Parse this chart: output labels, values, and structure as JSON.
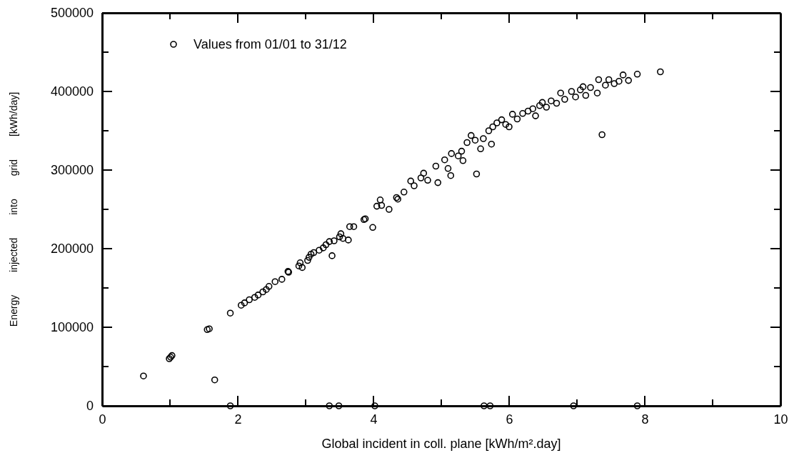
{
  "chart_data": {
    "type": "scatter",
    "xlabel": "Global incident in coll. plane [kWh/m².day]",
    "ylabel": "Energy injected into grid [kWh/day]",
    "xlim": [
      0,
      10
    ],
    "ylim": [
      0,
      500000
    ],
    "xticks": [
      0,
      {
        "value": 1,
        "label": null
      },
      2,
      {
        "value": 3,
        "label": null
      },
      4,
      {
        "value": 5,
        "label": null
      },
      6,
      {
        "value": 7,
        "label": null
      },
      8,
      {
        "value": 9,
        "label": null
      },
      10
    ],
    "yticks": [
      0,
      {
        "value": 50000,
        "label": null
      },
      100000,
      {
        "value": 150000,
        "label": null
      },
      200000,
      {
        "value": 250000,
        "label": null
      },
      300000,
      {
        "value": 350000,
        "label": null
      },
      400000,
      {
        "value": 450000,
        "label": null
      },
      500000
    ],
    "grid": false,
    "legend": "top left",
    "marker": "circle",
    "series": [
      {
        "name": "Values from 01/01 to 31/12",
        "color": "#000000",
        "x": [
          0.61,
          0.99,
          1.01,
          1.03,
          1.55,
          1.58,
          1.66,
          1.89,
          1.89,
          2.05,
          2.1,
          2.17,
          2.25,
          2.3,
          2.37,
          2.42,
          2.46,
          2.55,
          2.65,
          2.74,
          2.75,
          2.9,
          2.92,
          2.95,
          3.03,
          3.05,
          3.08,
          3.12,
          3.2,
          3.26,
          3.3,
          3.35,
          3.39,
          3.42,
          3.5,
          3.52,
          3.55,
          3.63,
          3.65,
          3.71,
          3.86,
          3.88,
          3.99,
          4.05,
          4.1,
          4.12,
          4.23,
          4.34,
          4.36,
          4.45,
          4.55,
          4.6,
          4.7,
          4.74,
          4.8,
          4.92,
          4.95,
          5.05,
          5.1,
          5.14,
          5.15,
          5.25,
          5.3,
          5.32,
          5.38,
          5.44,
          5.5,
          5.52,
          5.58,
          5.62,
          5.7,
          5.74,
          5.76,
          5.82,
          5.89,
          5.95,
          6.0,
          6.05,
          6.12,
          6.2,
          6.28,
          6.35,
          6.39,
          6.45,
          6.49,
          6.55,
          6.62,
          6.7,
          6.76,
          6.82,
          6.92,
          6.98,
          7.05,
          7.09,
          7.13,
          7.2,
          7.3,
          7.32,
          7.37,
          7.42,
          7.47,
          7.55,
          7.62,
          7.68,
          7.76,
          7.89,
          8.23,
          3.35,
          3.49,
          4.02,
          5.63,
          5.72,
          6.95,
          7.89
        ],
        "values": [
          38000,
          60000,
          62000,
          64000,
          97000,
          98000,
          33000,
          118000,
          0,
          128000,
          131000,
          135000,
          138000,
          141000,
          145000,
          148000,
          152000,
          158000,
          161000,
          171000,
          170000,
          178000,
          182000,
          176000,
          185000,
          189000,
          193000,
          195000,
          198000,
          201000,
          205000,
          209000,
          191000,
          210000,
          215000,
          219000,
          213000,
          211000,
          228000,
          228000,
          237000,
          238000,
          227000,
          254000,
          262000,
          255000,
          250000,
          265000,
          263000,
          272000,
          286000,
          280000,
          290000,
          296000,
          287000,
          305000,
          284000,
          313000,
          302000,
          293000,
          321000,
          318000,
          324000,
          312000,
          335000,
          344000,
          338000,
          295000,
          327000,
          340000,
          350000,
          333000,
          355000,
          360000,
          364000,
          358000,
          355000,
          371000,
          365000,
          372000,
          375000,
          378000,
          369000,
          382000,
          386000,
          380000,
          388000,
          385000,
          398000,
          390000,
          400000,
          393000,
          402000,
          406000,
          395000,
          405000,
          398000,
          415000,
          345000,
          408000,
          415000,
          410000,
          413000,
          421000,
          414000,
          422000,
          425000,
          0,
          0,
          0,
          0,
          0,
          0,
          0
        ]
      }
    ]
  }
}
